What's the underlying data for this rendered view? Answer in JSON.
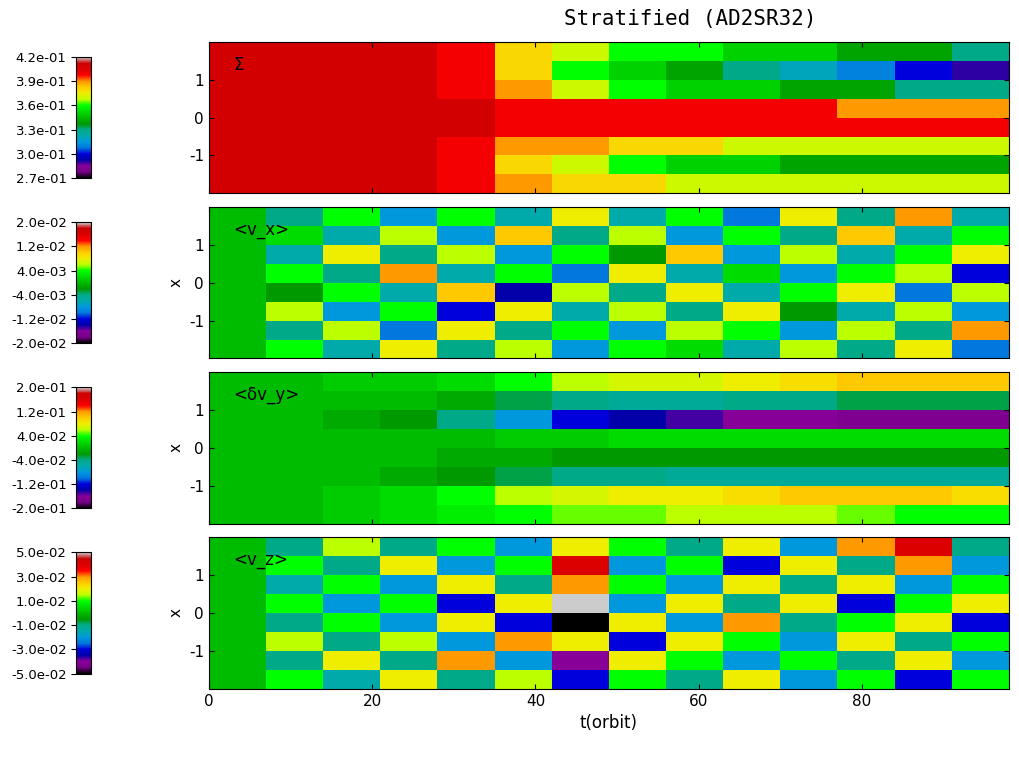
{
  "chart_data": [
    {
      "type": "heatmap",
      "title": "Stratified (AD2SR32)",
      "label": "Σ",
      "xlim": [
        0,
        98
      ],
      "xticks": [
        0,
        20,
        40,
        60,
        80
      ],
      "ylim": [
        -2,
        2
      ],
      "yticks": [
        -1,
        0,
        1
      ],
      "tick_labels": "y",
      "x_edges": [
        0,
        7,
        14,
        21,
        28,
        35,
        42,
        49,
        56,
        63,
        70,
        77,
        84,
        91,
        98
      ],
      "y_edges": [
        -2,
        -1.5,
        -1,
        -0.5,
        0,
        0.5,
        1,
        1.5,
        2
      ],
      "cells": [
        [
          0.41,
          0.41,
          0.41,
          0.41,
          0.4,
          0.39,
          0.38,
          0.38,
          0.37,
          0.37,
          0.37,
          0.37,
          0.37,
          0.37
        ],
        [
          0.41,
          0.41,
          0.41,
          0.41,
          0.4,
          0.38,
          0.37,
          0.36,
          0.35,
          0.35,
          0.34,
          0.34,
          0.34,
          0.34
        ],
        [
          0.41,
          0.41,
          0.41,
          0.41,
          0.4,
          0.39,
          0.39,
          0.38,
          0.38,
          0.37,
          0.37,
          0.37,
          0.37,
          0.37
        ],
        [
          0.41,
          0.41,
          0.41,
          0.41,
          0.41,
          0.4,
          0.4,
          0.4,
          0.4,
          0.4,
          0.4,
          0.4,
          0.4,
          0.4
        ],
        [
          0.41,
          0.41,
          0.41,
          0.41,
          0.41,
          0.4,
          0.4,
          0.4,
          0.4,
          0.4,
          0.4,
          0.39,
          0.39,
          0.39
        ],
        [
          0.41,
          0.41,
          0.41,
          0.41,
          0.4,
          0.39,
          0.37,
          0.36,
          0.35,
          0.35,
          0.34,
          0.34,
          0.33,
          0.33
        ],
        [
          0.41,
          0.41,
          0.41,
          0.41,
          0.4,
          0.38,
          0.36,
          0.35,
          0.34,
          0.33,
          0.32,
          0.31,
          0.3,
          0.29
        ],
        [
          0.41,
          0.41,
          0.41,
          0.41,
          0.4,
          0.38,
          0.37,
          0.36,
          0.36,
          0.35,
          0.35,
          0.34,
          0.34,
          0.33
        ]
      ],
      "colorbar_range": [
        0.27,
        0.42
      ],
      "colorbar_ticks": [
        {
          "value": 0.42,
          "label": "4.2e-01"
        },
        {
          "value": 0.39,
          "label": "3.9e-01"
        },
        {
          "value": 0.36,
          "label": "3.6e-01"
        },
        {
          "value": 0.33,
          "label": "3.3e-01"
        },
        {
          "value": 0.3,
          "label": "3.0e-01"
        },
        {
          "value": 0.27,
          "label": "2.7e-01"
        }
      ]
    },
    {
      "type": "heatmap",
      "label": "<v_x>",
      "ylabel": "x",
      "xlim": [
        0,
        98
      ],
      "xticks": [
        0,
        20,
        40,
        60,
        80
      ],
      "ylim": [
        -2,
        2
      ],
      "yticks": [
        -1,
        0,
        1
      ],
      "tick_labels": "y",
      "x_edges": [
        0,
        7,
        14,
        21,
        28,
        35,
        42,
        49,
        56,
        63,
        70,
        77,
        84,
        91,
        98
      ],
      "y_edges": [
        -2,
        -1.5,
        -1,
        -0.5,
        0,
        0.5,
        1,
        1.5,
        2
      ],
      "cells": [
        [
          0,
          0.004,
          -0.006,
          0.008,
          -0.004,
          0.006,
          -0.008,
          0.004,
          0.002,
          -0.006,
          0.006,
          -0.004,
          0.008,
          -0.01
        ],
        [
          0,
          -0.004,
          0.006,
          -0.01,
          0.008,
          -0.004,
          0.004,
          -0.008,
          0.006,
          0.004,
          -0.008,
          0.006,
          -0.004,
          0.012
        ],
        [
          0,
          0.006,
          -0.008,
          0.004,
          -0.012,
          0.008,
          -0.006,
          0.006,
          -0.004,
          0.008,
          -0.002,
          -0.006,
          0.006,
          -0.008
        ],
        [
          0,
          -0.002,
          0.004,
          -0.006,
          0.01,
          -0.014,
          0.006,
          -0.004,
          0.008,
          -0.006,
          0.004,
          0.008,
          -0.01,
          0.006
        ],
        [
          0,
          0.004,
          -0.004,
          0.012,
          -0.006,
          0.004,
          -0.01,
          0.008,
          -0.006,
          0.002,
          -0.008,
          0.004,
          0.006,
          -0.012
        ],
        [
          0,
          -0.006,
          0.008,
          -0.004,
          0.006,
          -0.008,
          0.004,
          -0.002,
          0.01,
          -0.008,
          0.006,
          -0.006,
          0.004,
          0.008
        ],
        [
          0,
          0.002,
          -0.006,
          0.006,
          -0.008,
          0.01,
          -0.004,
          0.006,
          -0.008,
          0.004,
          -0.004,
          0.01,
          -0.006,
          0.004
        ],
        [
          0,
          -0.004,
          0.004,
          -0.008,
          0.004,
          -0.006,
          0.008,
          -0.006,
          0.004,
          -0.01,
          0.008,
          -0.004,
          0.012,
          -0.006
        ]
      ],
      "colorbar_range": [
        -0.02,
        0.02
      ],
      "colorbar_ticks": [
        {
          "value": 0.02,
          "label": "2.0e-02"
        },
        {
          "value": 0.012,
          "label": "1.2e-02"
        },
        {
          "value": 0.004,
          "label": "4.0e-03"
        },
        {
          "value": -0.004,
          "label": "-4.0e-03"
        },
        {
          "value": -0.012,
          "label": "-1.2e-02"
        },
        {
          "value": -0.02,
          "label": "-2.0e-02"
        }
      ]
    },
    {
      "type": "heatmap",
      "label": "<δv_y>",
      "ylabel": "x",
      "xlim": [
        0,
        98
      ],
      "xticks": [
        0,
        20,
        40,
        60,
        80
      ],
      "ylim": [
        -2,
        2
      ],
      "yticks": [
        -1,
        0,
        1
      ],
      "tick_labels": "y",
      "x_edges": [
        0,
        7,
        14,
        21,
        28,
        35,
        42,
        49,
        56,
        63,
        70,
        77,
        84,
        91,
        98
      ],
      "y_edges": [
        -2,
        -1.5,
        -1,
        -0.5,
        0,
        0.5,
        1,
        1.5,
        2
      ],
      "cells": [
        [
          0,
          0,
          0.01,
          0.02,
          0.03,
          0.04,
          0.05,
          0.05,
          0.06,
          0.06,
          0.06,
          0.05,
          0.04,
          0.04
        ],
        [
          0,
          0,
          0.01,
          0.02,
          0.04,
          0.06,
          0.07,
          0.08,
          0.08,
          0.09,
          0.1,
          0.1,
          0.1,
          0.09
        ],
        [
          0,
          0,
          0,
          -0.01,
          -0.02,
          -0.03,
          -0.04,
          -0.04,
          -0.05,
          -0.05,
          -0.05,
          -0.05,
          -0.05,
          -0.05
        ],
        [
          0,
          0,
          0,
          0,
          -0.01,
          -0.01,
          -0.02,
          -0.02,
          -0.02,
          -0.02,
          -0.02,
          -0.02,
          -0.02,
          -0.02
        ],
        [
          0,
          0,
          0,
          0,
          0,
          0.01,
          0.01,
          0.02,
          0.02,
          0.02,
          0.02,
          0.02,
          0.02,
          0.02
        ],
        [
          0,
          0,
          -0.01,
          -0.02,
          -0.04,
          -0.08,
          -0.12,
          -0.14,
          -0.15,
          -0.16,
          -0.16,
          -0.17,
          -0.17,
          -0.17
        ],
        [
          0,
          0,
          0,
          0,
          -0.01,
          -0.03,
          -0.04,
          -0.05,
          -0.05,
          -0.04,
          -0.04,
          -0.03,
          -0.03,
          -0.03
        ],
        [
          0,
          0,
          0.01,
          0.01,
          0.02,
          0.04,
          0.06,
          0.07,
          0.07,
          0.08,
          0.09,
          0.1,
          0.1,
          0.1
        ]
      ],
      "colorbar_range": [
        -0.2,
        0.2
      ],
      "colorbar_ticks": [
        {
          "value": 0.2,
          "label": "2.0e-01"
        },
        {
          "value": 0.12,
          "label": "1.2e-01"
        },
        {
          "value": 0.04,
          "label": "4.0e-02"
        },
        {
          "value": -0.04,
          "label": "-4.0e-02"
        },
        {
          "value": -0.12,
          "label": "-1.2e-01"
        },
        {
          "value": -0.2,
          "label": "-2.0e-01"
        }
      ]
    },
    {
      "type": "heatmap",
      "label": "<v_z>",
      "ylabel": "x",
      "xlabel": "t(orbit)",
      "xlim": [
        0,
        98
      ],
      "xticks": [
        0,
        20,
        40,
        60,
        80
      ],
      "ylim": [
        -2,
        2
      ],
      "yticks": [
        -1,
        0,
        1
      ],
      "tick_labels": true,
      "x_edges": [
        0,
        7,
        14,
        21,
        28,
        35,
        42,
        49,
        56,
        63,
        70,
        77,
        84,
        91,
        98
      ],
      "y_edges": [
        -2,
        -1.5,
        -1,
        -0.5,
        0,
        0.5,
        1,
        1.5,
        2
      ],
      "cells": [
        [
          0,
          0.01,
          -0.015,
          0.02,
          -0.01,
          0.015,
          -0.03,
          0.01,
          -0.01,
          0.02,
          -0.02,
          0.01,
          -0.03,
          0.01
        ],
        [
          0,
          -0.01,
          0.02,
          -0.01,
          0.03,
          -0.02,
          -0.04,
          0.02,
          0.01,
          -0.02,
          0.01,
          -0.01,
          0.02,
          -0.02
        ],
        [
          0,
          0.015,
          -0.01,
          0.015,
          -0.02,
          0.03,
          0.02,
          -0.03,
          0.02,
          0.01,
          -0.02,
          0.02,
          -0.01,
          0.01
        ],
        [
          0,
          -0.01,
          0.01,
          -0.02,
          0.02,
          -0.03,
          -0.05,
          0.02,
          -0.02,
          0.03,
          -0.01,
          0.01,
          0.02,
          -0.03
        ],
        [
          0,
          0.01,
          -0.02,
          0.01,
          -0.03,
          0.02,
          0.05,
          -0.02,
          0.02,
          -0.01,
          0.02,
          -0.03,
          0.01,
          0.02
        ],
        [
          0,
          -0.015,
          0.01,
          -0.02,
          0.02,
          -0.01,
          0.03,
          0.01,
          -0.02,
          0.02,
          -0.01,
          0.02,
          -0.02,
          0.01
        ],
        [
          0,
          0.01,
          -0.01,
          0.02,
          -0.02,
          0.01,
          0.04,
          -0.02,
          0.01,
          -0.03,
          0.02,
          -0.01,
          0.03,
          -0.02
        ],
        [
          0,
          -0.01,
          0.015,
          -0.01,
          0.01,
          -0.02,
          0.02,
          0.01,
          -0.01,
          0.02,
          -0.02,
          0.03,
          0.04,
          -0.01
        ]
      ],
      "colorbar_range": [
        -0.05,
        0.05
      ],
      "colorbar_ticks": [
        {
          "value": 0.05,
          "label": "5.0e-02"
        },
        {
          "value": 0.03,
          "label": "3.0e-02"
        },
        {
          "value": 0.01,
          "label": "1.0e-02"
        },
        {
          "value": -0.01,
          "label": "-1.0e-02"
        },
        {
          "value": -0.03,
          "label": "-3.0e-02"
        },
        {
          "value": -0.05,
          "label": "-5.0e-02"
        }
      ]
    }
  ]
}
